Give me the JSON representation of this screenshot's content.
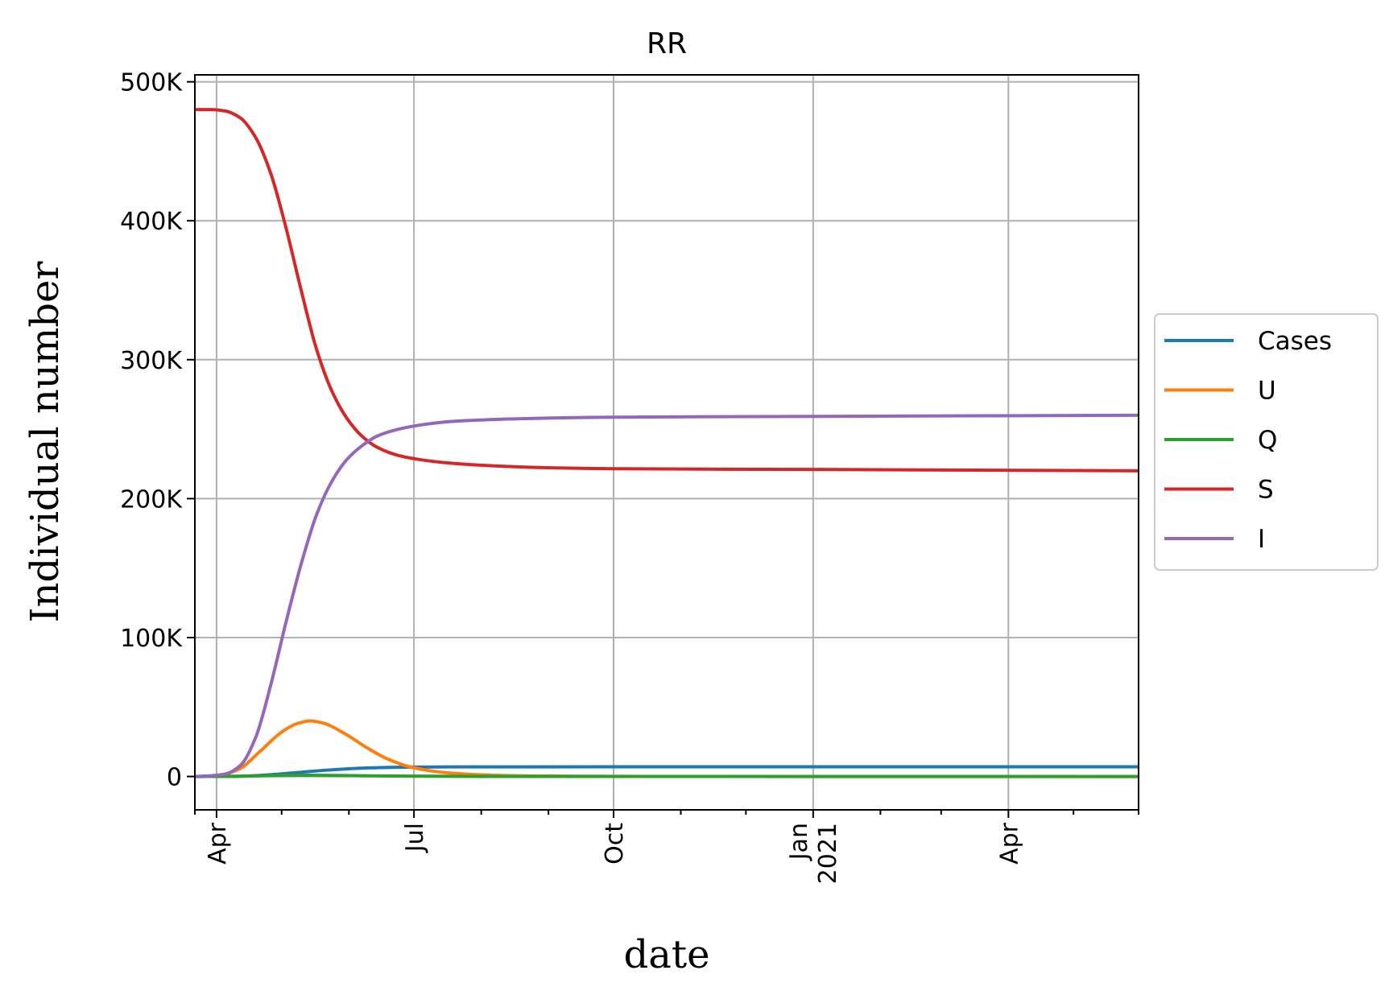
{
  "chart_data": {
    "type": "line",
    "title": "RR",
    "xlabel": "date",
    "ylabel": "Individual number",
    "x_start": "2020-03-22",
    "x_end": "2021-05-31",
    "xlim": [
      "2020-03-22",
      "2021-05-31"
    ],
    "ylim": [
      -24000,
      505000
    ],
    "grid": true,
    "legend_position": "outside-right",
    "x_ticks": [
      {
        "date": "2020-04-01",
        "label": "Apr",
        "label2": ""
      },
      {
        "date": "2020-07-01",
        "label": "Jul",
        "label2": ""
      },
      {
        "date": "2020-10-01",
        "label": "Oct",
        "label2": ""
      },
      {
        "date": "2021-01-01",
        "label": "Jan",
        "label2": "2021"
      },
      {
        "date": "2021-04-01",
        "label": "Apr",
        "label2": ""
      }
    ],
    "x_minor_ticks": [
      "2020-03-22",
      "2020-05-01",
      "2020-06-01",
      "2020-08-01",
      "2020-09-01",
      "2020-11-01",
      "2020-12-01",
      "2021-02-01",
      "2021-03-01",
      "2021-05-01",
      "2021-05-31"
    ],
    "y_ticks": [
      {
        "value": 0,
        "label": "0"
      },
      {
        "value": 100000,
        "label": "100K"
      },
      {
        "value": 200000,
        "label": "200K"
      },
      {
        "value": 300000,
        "label": "300K"
      },
      {
        "value": 400000,
        "label": "400K"
      },
      {
        "value": 500000,
        "label": "500K"
      }
    ],
    "series": [
      {
        "name": "Cases",
        "color": "#1f77b4",
        "points": [
          [
            "2020-03-22",
            0
          ],
          [
            "2020-04-01",
            20
          ],
          [
            "2020-04-11",
            200
          ],
          [
            "2020-04-21",
            800
          ],
          [
            "2020-05-01",
            1900
          ],
          [
            "2020-05-11",
            3200
          ],
          [
            "2020-05-21",
            4500
          ],
          [
            "2020-05-31",
            5500
          ],
          [
            "2020-06-10",
            6200
          ],
          [
            "2020-06-20",
            6600
          ],
          [
            "2020-07-01",
            6800
          ],
          [
            "2020-07-20",
            6900
          ],
          [
            "2020-08-15",
            6950
          ],
          [
            "2020-10-01",
            7000
          ],
          [
            "2021-01-01",
            7000
          ],
          [
            "2021-05-31",
            7000
          ]
        ]
      },
      {
        "name": "U",
        "color": "#ff7f0e",
        "points": [
          [
            "2020-03-22",
            0
          ],
          [
            "2020-04-01",
            400
          ],
          [
            "2020-04-11",
            5000
          ],
          [
            "2020-04-21",
            18000
          ],
          [
            "2020-05-01",
            32000
          ],
          [
            "2020-05-08",
            38000
          ],
          [
            "2020-05-14",
            40000
          ],
          [
            "2020-05-20",
            38500
          ],
          [
            "2020-05-30",
            31000
          ],
          [
            "2020-06-09",
            21000
          ],
          [
            "2020-06-19",
            12500
          ],
          [
            "2020-06-29",
            7000
          ],
          [
            "2020-07-09",
            4000
          ],
          [
            "2020-07-20",
            2200
          ],
          [
            "2020-08-01",
            1200
          ],
          [
            "2020-08-20",
            500
          ],
          [
            "2020-09-15",
            200
          ],
          [
            "2020-10-15",
            80
          ],
          [
            "2021-05-31",
            0
          ]
        ]
      },
      {
        "name": "Q",
        "color": "#2ca02c",
        "points": [
          [
            "2020-03-22",
            0
          ],
          [
            "2020-04-11",
            150
          ],
          [
            "2020-04-25",
            600
          ],
          [
            "2020-05-10",
            900
          ],
          [
            "2020-05-25",
            800
          ],
          [
            "2020-06-10",
            500
          ],
          [
            "2020-07-01",
            250
          ],
          [
            "2020-08-01",
            80
          ],
          [
            "2020-09-01",
            20
          ],
          [
            "2021-05-31",
            0
          ]
        ]
      },
      {
        "name": "S",
        "color": "#d62728",
        "points": [
          [
            "2020-03-22",
            480000
          ],
          [
            "2020-03-29",
            480000
          ],
          [
            "2020-04-05",
            479000
          ],
          [
            "2020-04-12",
            474000
          ],
          [
            "2020-04-19",
            460000
          ],
          [
            "2020-04-26",
            434000
          ],
          [
            "2020-05-03",
            395000
          ],
          [
            "2020-05-10",
            350000
          ],
          [
            "2020-05-17",
            308000
          ],
          [
            "2020-05-24",
            278000
          ],
          [
            "2020-05-31",
            258000
          ],
          [
            "2020-06-07",
            245000
          ],
          [
            "2020-06-14",
            237000
          ],
          [
            "2020-06-24",
            231000
          ],
          [
            "2020-07-04",
            228000
          ],
          [
            "2020-07-18",
            225500
          ],
          [
            "2020-08-08",
            223500
          ],
          [
            "2020-09-08",
            222000
          ],
          [
            "2020-10-01",
            221500
          ],
          [
            "2021-01-01",
            221000
          ],
          [
            "2021-05-31",
            220000
          ]
        ]
      },
      {
        "name": "I",
        "color": "#9467bd",
        "points": [
          [
            "2020-03-22",
            0
          ],
          [
            "2020-03-29",
            500
          ],
          [
            "2020-04-05",
            1800
          ],
          [
            "2020-04-12",
            8000
          ],
          [
            "2020-04-19",
            28000
          ],
          [
            "2020-04-26",
            66000
          ],
          [
            "2020-05-03",
            111000
          ],
          [
            "2020-05-10",
            153000
          ],
          [
            "2020-05-17",
            188000
          ],
          [
            "2020-05-24",
            212000
          ],
          [
            "2020-05-31",
            228000
          ],
          [
            "2020-06-07",
            238000
          ],
          [
            "2020-06-14",
            245000
          ],
          [
            "2020-06-24",
            250000
          ],
          [
            "2020-07-04",
            253000
          ],
          [
            "2020-07-18",
            255500
          ],
          [
            "2020-08-08",
            257000
          ],
          [
            "2020-09-08",
            258200
          ],
          [
            "2020-10-01",
            258600
          ],
          [
            "2021-01-01",
            259200
          ],
          [
            "2021-05-31",
            260000
          ]
        ]
      }
    ]
  }
}
